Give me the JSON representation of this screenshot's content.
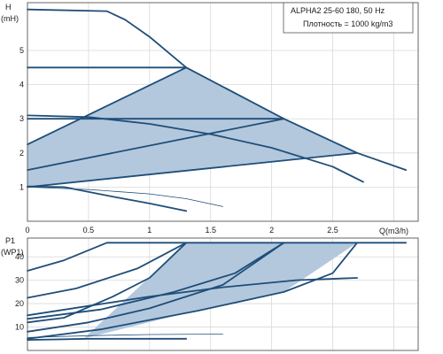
{
  "legend": {
    "model": "ALPHA2 25-60 180, 50 Hz",
    "density": "Плотность = 1000 kg/m3"
  },
  "colors": {
    "curve": "#1f4e79",
    "region_fill": "#b3c8dd",
    "grid": "#d9d9d9",
    "frame": "#555555"
  },
  "chart_data": [
    {
      "type": "line",
      "name": "head-chart",
      "ylabel_top": "H",
      "ylabel_unit": "(mH)",
      "xlabel": "Q(m3/h)",
      "xlim": [
        0,
        3.2
      ],
      "ylim": [
        0,
        6.4
      ],
      "x_ticks": [
        "0",
        "0.5",
        "1",
        "1.5",
        "2",
        "2.5"
      ],
      "x_tick_values": [
        0,
        0.5,
        1,
        1.5,
        2,
        2.5
      ],
      "y_ticks": [
        "1",
        "2",
        "3",
        "4",
        "5"
      ],
      "y_tick_values": [
        1,
        2,
        3,
        4,
        5
      ],
      "grid": true,
      "region": [
        [
          0,
          2.25
        ],
        [
          1.3,
          4.5
        ],
        [
          2.1,
          3.0
        ],
        [
          2.7,
          2.0
        ],
        [
          0,
          1.0
        ]
      ],
      "series": [
        {
          "key": "max-speed",
          "style": "thick",
          "points": [
            [
              0,
              6.2
            ],
            [
              0.65,
              6.15
            ],
            [
              0.8,
              5.9
            ],
            [
              1.0,
              5.4
            ],
            [
              1.3,
              4.5
            ],
            [
              2.1,
              3.0
            ],
            [
              2.7,
              2.0
            ],
            [
              3.1,
              1.5
            ]
          ]
        },
        {
          "key": "const-pressure-high",
          "style": "thick",
          "points": [
            [
              0,
              4.5
            ],
            [
              1.3,
              4.5
            ]
          ]
        },
        {
          "key": "prop-pressure-high",
          "style": "thick",
          "points": [
            [
              0,
              2.25
            ],
            [
              1.3,
              4.5
            ]
          ]
        },
        {
          "key": "const-pressure-mid",
          "style": "thick",
          "points": [
            [
              0,
              3.0
            ],
            [
              2.1,
              3.0
            ]
          ]
        },
        {
          "key": "prop-pressure-mid",
          "style": "thick",
          "points": [
            [
              0,
              1.5
            ],
            [
              2.1,
              3.0
            ]
          ]
        },
        {
          "key": "prop-pressure-low",
          "style": "thick",
          "points": [
            [
              0,
              1.0
            ],
            [
              2.7,
              2.0
            ]
          ]
        },
        {
          "key": "speed-ii",
          "style": "thick",
          "points": [
            [
              0,
              3.1
            ],
            [
              0.5,
              3.05
            ],
            [
              1.0,
              2.85
            ],
            [
              1.5,
              2.55
            ],
            [
              2.0,
              2.15
            ],
            [
              2.5,
              1.6
            ],
            [
              2.75,
              1.15
            ]
          ]
        },
        {
          "key": "speed-i",
          "style": "thick",
          "points": [
            [
              0,
              1.02
            ],
            [
              0.3,
              1.0
            ],
            [
              0.7,
              0.72
            ],
            [
              1.0,
              0.52
            ],
            [
              1.3,
              0.3
            ]
          ]
        },
        {
          "key": "speed-min",
          "style": "thin",
          "points": [
            [
              0,
              1.0
            ],
            [
              0.5,
              0.93
            ],
            [
              1.0,
              0.8
            ],
            [
              1.3,
              0.66
            ],
            [
              1.6,
              0.43
            ]
          ]
        }
      ]
    },
    {
      "type": "line",
      "name": "power-chart",
      "ylabel_top": "P1",
      "ylabel_unit": "(WP1)",
      "xlim": [
        0,
        3.2
      ],
      "ylim": [
        0,
        48
      ],
      "y_ticks": [
        "10",
        "20",
        "30",
        "40"
      ],
      "y_tick_values": [
        10,
        20,
        30,
        40
      ],
      "grid": true,
      "region": [
        [
          0.45,
          4.5
        ],
        [
          1.3,
          46
        ],
        [
          2.1,
          46
        ],
        [
          2.7,
          46
        ],
        [
          2.1,
          25
        ],
        [
          1.3,
          16
        ],
        [
          0.45,
          5
        ]
      ],
      "series": [
        {
          "key": "max-speed-p",
          "style": "thick",
          "points": [
            [
              0,
              34
            ],
            [
              0.3,
              38.5
            ],
            [
              0.65,
              46
            ],
            [
              3.1,
              46
            ]
          ]
        },
        {
          "key": "const-pressure-high-p",
          "style": "thick",
          "points": [
            [
              0,
              22.5
            ],
            [
              0.4,
              26.5
            ],
            [
              0.9,
              35
            ],
            [
              1.3,
              46
            ]
          ]
        },
        {
          "key": "prop-pressure-high-p",
          "style": "thick",
          "points": [
            [
              0,
              12
            ],
            [
              0.3,
              14
            ],
            [
              0.7,
              23
            ],
            [
              1.0,
              31
            ],
            [
              1.3,
              46
            ]
          ]
        },
        {
          "key": "const-pressure-mid-p",
          "style": "thick",
          "points": [
            [
              0,
              13.5
            ],
            [
              0.6,
              17.5
            ],
            [
              1.2,
              25
            ],
            [
              1.7,
              33
            ],
            [
              2.1,
              46
            ]
          ]
        },
        {
          "key": "prop-pressure-mid-p",
          "style": "thick",
          "points": [
            [
              0,
              8
            ],
            [
              0.5,
              12
            ],
            [
              1.0,
              18
            ],
            [
              1.6,
              28
            ],
            [
              2.1,
              46
            ]
          ]
        },
        {
          "key": "prop-pressure-low-p",
          "style": "thick",
          "points": [
            [
              0,
              5
            ],
            [
              0.6,
              9
            ],
            [
              1.4,
              17
            ],
            [
              2.1,
              25
            ],
            [
              2.5,
              33
            ],
            [
              2.7,
              46
            ]
          ]
        },
        {
          "key": "speed-ii-p",
          "style": "thick",
          "points": [
            [
              0,
              15
            ],
            [
              0.5,
              19
            ],
            [
              1.0,
              23
            ],
            [
              1.6,
              27
            ],
            [
              2.2,
              30
            ],
            [
              2.7,
              31
            ]
          ]
        },
        {
          "key": "speed-i-p",
          "style": "thick",
          "points": [
            [
              0,
              4.5
            ],
            [
              0.5,
              5
            ],
            [
              1.3,
              5
            ]
          ]
        },
        {
          "key": "speed-min-p",
          "style": "thin",
          "points": [
            [
              0,
              5.5
            ],
            [
              0.5,
              6.3
            ],
            [
              1.0,
              6.8
            ],
            [
              1.6,
              7
            ]
          ]
        }
      ]
    }
  ]
}
